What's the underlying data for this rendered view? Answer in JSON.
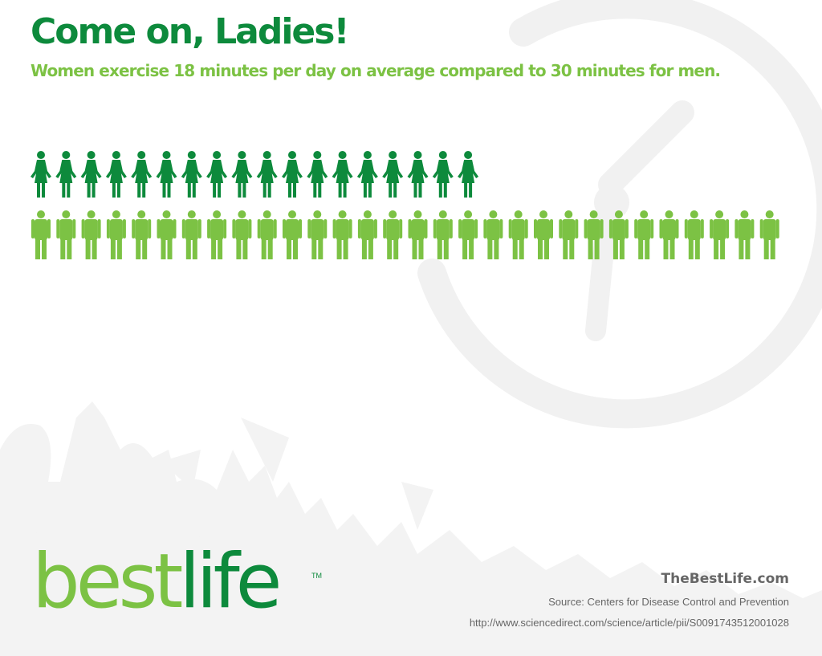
{
  "header": {
    "title": "Come on, Ladies!",
    "subtitle": "Women exercise 18 minutes per day on average compared to 30 minutes for men."
  },
  "chart_data": {
    "type": "bar",
    "categories": [
      "Women",
      "Men"
    ],
    "values": [
      18,
      30
    ],
    "unit": "minutes per day",
    "title": "Come on, Ladies!",
    "subtitle": "Women exercise 18 minutes per day on average compared to 30 minutes for men.",
    "xlabel": "",
    "ylabel": "",
    "icon_per_unit": 1,
    "colors": {
      "women": "#0d8a3c",
      "men": "#7cc244"
    },
    "grid": false,
    "legend": "none"
  },
  "branding": {
    "logo_best": "best",
    "logo_life": "life",
    "trademark": "TM",
    "site": "TheBestLife.com",
    "source": "Source: Centers for Disease Control and Prevention",
    "url": "http://www.sciencedirect.com/science/article/pii/S0091743512001028"
  },
  "colors": {
    "dark_green": "#0d8a3c",
    "light_green": "#7cc244",
    "watermark": "#f1f1f1",
    "footer_text": "#666666"
  },
  "icons": [
    "stopwatch-watermark",
    "crowd-silhouette",
    "woman-icon",
    "man-icon"
  ]
}
